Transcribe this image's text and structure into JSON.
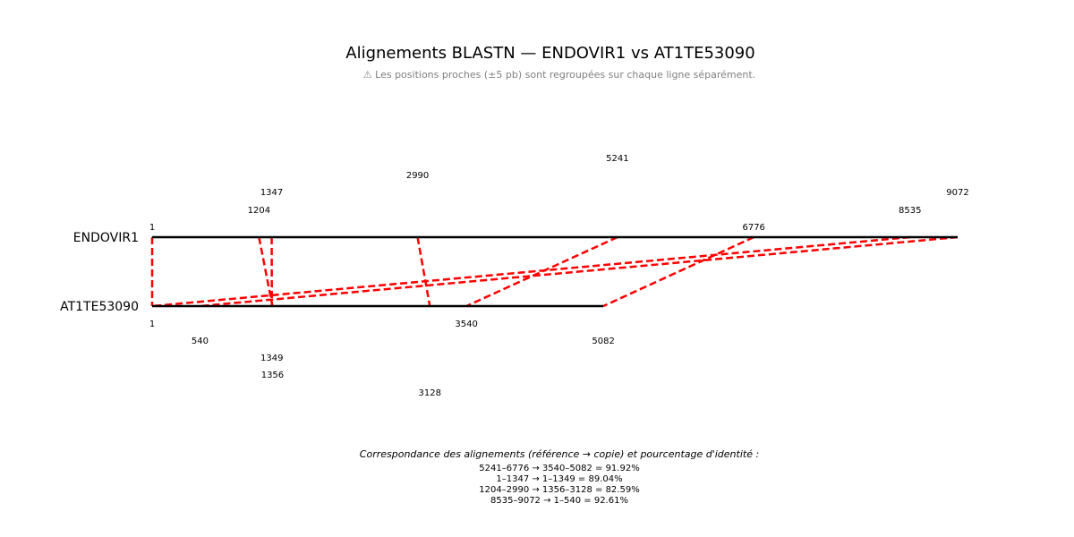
{
  "title": "Alignements BLASTN — ENDOVIR1 vs AT1TE53090",
  "subtitle": "⚠ Les positions proches (±5 pb) sont regroupées sur chaque ligne séparément.",
  "colors": {
    "link": "#ff0000",
    "sequence": "#000000",
    "subtitle": "#808080"
  },
  "sequences": {
    "top": {
      "name": "ENDOVIR1",
      "length": 9072
    },
    "bottom": {
      "name": "AT1TE53090",
      "length": 5082
    }
  },
  "top_labels": [
    "1",
    "1204",
    "1347",
    "2990",
    "5241",
    "6776",
    "8535",
    "9072"
  ],
  "bottom_labels": [
    "1",
    "540",
    "1349",
    "1356",
    "3128",
    "3540",
    "5082"
  ],
  "alignments": [
    {
      "ref_start": 5241,
      "ref_end": 6776,
      "copy_start": 3540,
      "copy_end": 5082,
      "identity": 91.92
    },
    {
      "ref_start": 1,
      "ref_end": 1347,
      "copy_start": 1,
      "copy_end": 1349,
      "identity": 89.04
    },
    {
      "ref_start": 1204,
      "ref_end": 2990,
      "copy_start": 1356,
      "copy_end": 3128,
      "identity": 82.59
    },
    {
      "ref_start": 8535,
      "ref_end": 9072,
      "copy_start": 1,
      "copy_end": 540,
      "identity": 92.61
    }
  ],
  "caption": {
    "heading": "Correspondance des alignements (référence → copie) et pourcentage d'identité :",
    "lines": [
      "5241–6776 → 3540–5082 = 91.92%",
      "1–1347 → 1–1349 = 89.04%",
      "1204–2990 → 1356–3128 = 82.59%",
      "8535–9072 → 1–540 = 92.61%"
    ]
  }
}
